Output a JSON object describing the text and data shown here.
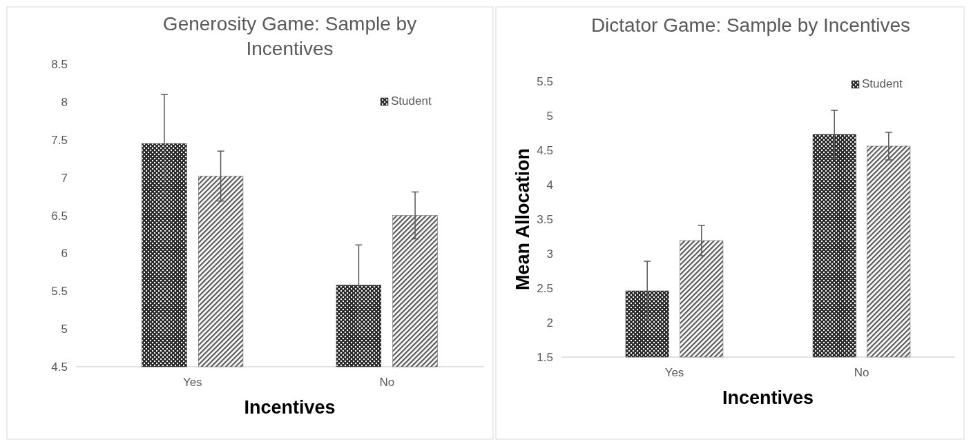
{
  "chart_data": [
    {
      "type": "bar",
      "title": "Generosity Game: Sample by Incentives",
      "xlabel": "Incentives",
      "categories": [
        "Yes",
        "No"
      ],
      "ylim": [
        4.5,
        8.5
      ],
      "yticks": [
        4.5,
        5,
        5.5,
        6,
        6.5,
        7,
        7.5,
        8,
        8.5
      ],
      "grid": false,
      "legend": "top right",
      "series": [
        {
          "name": "Student",
          "color": "#262626",
          "values": [
            7.45,
            5.58
          ],
          "errors": [
            0.65,
            0.53
          ]
        },
        {
          "color": "#595959",
          "values": [
            7.02,
            6.5
          ],
          "errors": [
            0.33,
            0.31
          ]
        }
      ]
    },
    {
      "type": "bar",
      "title": "Dictator Game: Sample by Incentives",
      "xlabel": "Incentives",
      "ylabel": "Mean Allocation",
      "categories": [
        "Yes",
        "No"
      ],
      "ylim": [
        1.5,
        5.5
      ],
      "yticks": [
        1.5,
        2,
        2.5,
        3,
        3.5,
        4,
        4.5,
        5,
        5.5
      ],
      "grid": false,
      "legend": "top right",
      "series": [
        {
          "name": "Student",
          "color": "#262626",
          "values": [
            2.46,
            4.73
          ],
          "errors": [
            0.43,
            0.35
          ]
        },
        {
          "color": "#595959",
          "values": [
            3.19,
            4.56
          ],
          "errors": [
            0.22,
            0.2
          ]
        }
      ]
    }
  ]
}
